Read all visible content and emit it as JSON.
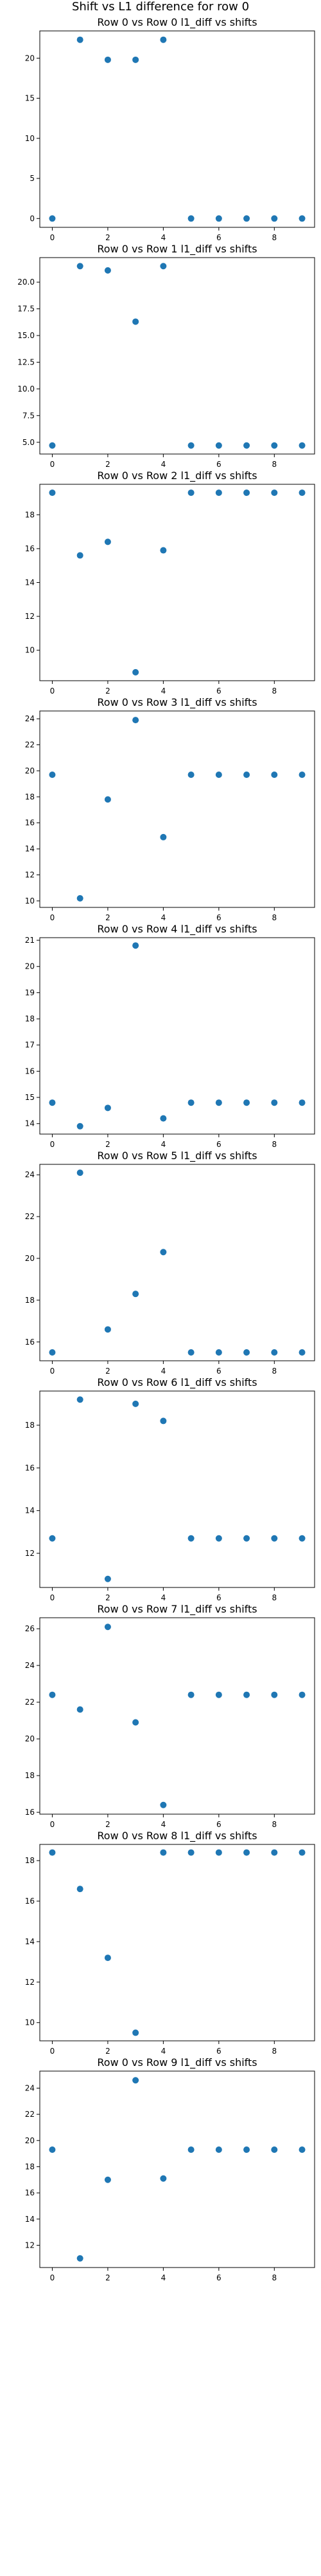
{
  "figure": {
    "suptitle": "Shift vs L1 difference for row 0",
    "marker_color": "#1f77b4"
  },
  "chart_data": [
    {
      "type": "scatter",
      "title": "Row 0 vs Row 0 l1_diff vs shifts",
      "x": [
        0,
        1,
        2,
        3,
        4,
        5,
        6,
        7,
        8,
        9
      ],
      "y": [
        0.0,
        22.3,
        19.8,
        19.8,
        22.3,
        0.0,
        0.0,
        0.0,
        0.0,
        0.0
      ],
      "xlim": [
        -0.45,
        9.45
      ],
      "ylim": [
        -1.1,
        23.4
      ],
      "xticks": [
        0,
        2,
        4,
        6,
        8
      ],
      "yticks": [
        0,
        5,
        10,
        15,
        20
      ],
      "ytick_labels": [
        "0",
        "5",
        "10",
        "15",
        "20"
      ],
      "grid": false
    },
    {
      "type": "scatter",
      "title": "Row 0 vs Row 1 l1_diff vs shifts",
      "x": [
        0,
        1,
        2,
        3,
        4,
        5,
        6,
        7,
        8,
        9
      ],
      "y": [
        4.7,
        21.5,
        21.1,
        16.3,
        21.5,
        4.7,
        4.7,
        4.7,
        4.7,
        4.7
      ],
      "xlim": [
        -0.45,
        9.45
      ],
      "ylim": [
        3.9,
        22.3
      ],
      "xticks": [
        0,
        2,
        4,
        6,
        8
      ],
      "yticks": [
        5.0,
        7.5,
        10.0,
        12.5,
        15.0,
        17.5,
        20.0
      ],
      "ytick_labels": [
        "5.0",
        "7.5",
        "10.0",
        "12.5",
        "15.0",
        "17.5",
        "20.0"
      ],
      "grid": false
    },
    {
      "type": "scatter",
      "title": "Row 0 vs Row 2 l1_diff vs shifts",
      "x": [
        0,
        1,
        2,
        3,
        4,
        5,
        6,
        7,
        8,
        9
      ],
      "y": [
        19.3,
        15.6,
        16.4,
        8.7,
        15.9,
        19.3,
        19.3,
        19.3,
        19.3,
        19.3
      ],
      "xlim": [
        -0.45,
        9.45
      ],
      "ylim": [
        8.2,
        19.8
      ],
      "xticks": [
        0,
        2,
        4,
        6,
        8
      ],
      "yticks": [
        10,
        12,
        14,
        16,
        18
      ],
      "ytick_labels": [
        "10",
        "12",
        "14",
        "16",
        "18"
      ],
      "grid": false
    },
    {
      "type": "scatter",
      "title": "Row 0 vs Row 3 l1_diff vs shifts",
      "x": [
        0,
        1,
        2,
        3,
        4,
        5,
        6,
        7,
        8,
        9
      ],
      "y": [
        19.7,
        10.2,
        17.8,
        23.9,
        14.9,
        19.7,
        19.7,
        19.7,
        19.7,
        19.7
      ],
      "xlim": [
        -0.45,
        9.45
      ],
      "ylim": [
        9.5,
        24.6
      ],
      "xticks": [
        0,
        2,
        4,
        6,
        8
      ],
      "yticks": [
        10,
        12,
        14,
        16,
        18,
        20,
        22,
        24
      ],
      "ytick_labels": [
        "10",
        "12",
        "14",
        "16",
        "18",
        "20",
        "22",
        "24"
      ],
      "grid": false
    },
    {
      "type": "scatter",
      "title": "Row 0 vs Row 4 l1_diff vs shifts",
      "x": [
        0,
        1,
        2,
        3,
        4,
        5,
        6,
        7,
        8,
        9
      ],
      "y": [
        14.8,
        13.9,
        14.6,
        20.8,
        14.2,
        14.8,
        14.8,
        14.8,
        14.8,
        14.8
      ],
      "xlim": [
        -0.45,
        9.45
      ],
      "ylim": [
        13.6,
        21.1
      ],
      "xticks": [
        0,
        2,
        4,
        6,
        8
      ],
      "yticks": [
        14,
        15,
        16,
        17,
        18,
        19,
        20,
        21
      ],
      "ytick_labels": [
        "14",
        "15",
        "16",
        "17",
        "18",
        "19",
        "20",
        "21"
      ],
      "grid": false
    },
    {
      "type": "scatter",
      "title": "Row 0 vs Row 5 l1_diff vs shifts",
      "x": [
        0,
        1,
        2,
        3,
        4,
        5,
        6,
        7,
        8,
        9
      ],
      "y": [
        15.5,
        24.1,
        16.6,
        18.3,
        20.3,
        15.5,
        15.5,
        15.5,
        15.5,
        15.5
      ],
      "xlim": [
        -0.45,
        9.45
      ],
      "ylim": [
        15.1,
        24.5
      ],
      "xticks": [
        0,
        2,
        4,
        6,
        8
      ],
      "yticks": [
        16,
        18,
        20,
        22,
        24
      ],
      "ytick_labels": [
        "16",
        "18",
        "20",
        "22",
        "24"
      ],
      "grid": false
    },
    {
      "type": "scatter",
      "title": "Row 0 vs Row 6 l1_diff vs shifts",
      "x": [
        0,
        1,
        2,
        3,
        4,
        5,
        6,
        7,
        8,
        9
      ],
      "y": [
        12.7,
        19.2,
        10.8,
        19.0,
        18.2,
        12.7,
        12.7,
        12.7,
        12.7,
        12.7
      ],
      "xlim": [
        -0.45,
        9.45
      ],
      "ylim": [
        10.4,
        19.6
      ],
      "xticks": [
        0,
        2,
        4,
        6,
        8
      ],
      "yticks": [
        12,
        14,
        16,
        18
      ],
      "ytick_labels": [
        "12",
        "14",
        "16",
        "18"
      ],
      "grid": false
    },
    {
      "type": "scatter",
      "title": "Row 0 vs Row 7 l1_diff vs shifts",
      "x": [
        0,
        1,
        2,
        3,
        4,
        5,
        6,
        7,
        8,
        9
      ],
      "y": [
        22.4,
        21.6,
        26.1,
        20.9,
        16.4,
        22.4,
        22.4,
        22.4,
        22.4,
        22.4
      ],
      "xlim": [
        -0.45,
        9.45
      ],
      "ylim": [
        15.9,
        26.6
      ],
      "xticks": [
        0,
        2,
        4,
        6,
        8
      ],
      "yticks": [
        16,
        18,
        20,
        22,
        24,
        26
      ],
      "ytick_labels": [
        "16",
        "18",
        "20",
        "22",
        "24",
        "26"
      ],
      "grid": false
    },
    {
      "type": "scatter",
      "title": "Row 0 vs Row 8 l1_diff vs shifts",
      "x": [
        0,
        1,
        2,
        3,
        4,
        5,
        6,
        7,
        8,
        9
      ],
      "y": [
        18.4,
        16.6,
        13.2,
        9.5,
        18.4,
        18.4,
        18.4,
        18.4,
        18.4,
        18.4
      ],
      "xlim": [
        -0.45,
        9.45
      ],
      "ylim": [
        9.1,
        18.8
      ],
      "xticks": [
        0,
        2,
        4,
        6,
        8
      ],
      "yticks": [
        10,
        12,
        14,
        16,
        18
      ],
      "ytick_labels": [
        "10",
        "12",
        "14",
        "16",
        "18"
      ],
      "grid": false
    },
    {
      "type": "scatter",
      "title": "Row 0 vs Row 9 l1_diff vs shifts",
      "x": [
        0,
        1,
        2,
        3,
        4,
        5,
        6,
        7,
        8,
        9
      ],
      "y": [
        19.3,
        11.0,
        17.0,
        24.6,
        17.1,
        19.3,
        19.3,
        19.3,
        19.3,
        19.3
      ],
      "xlim": [
        -0.45,
        9.45
      ],
      "ylim": [
        10.3,
        25.3
      ],
      "xticks": [
        0,
        2,
        4,
        6,
        8
      ],
      "yticks": [
        12,
        14,
        16,
        18,
        20,
        22,
        24
      ],
      "ytick_labels": [
        "12",
        "14",
        "16",
        "18",
        "20",
        "22",
        "24"
      ],
      "grid": false
    }
  ]
}
